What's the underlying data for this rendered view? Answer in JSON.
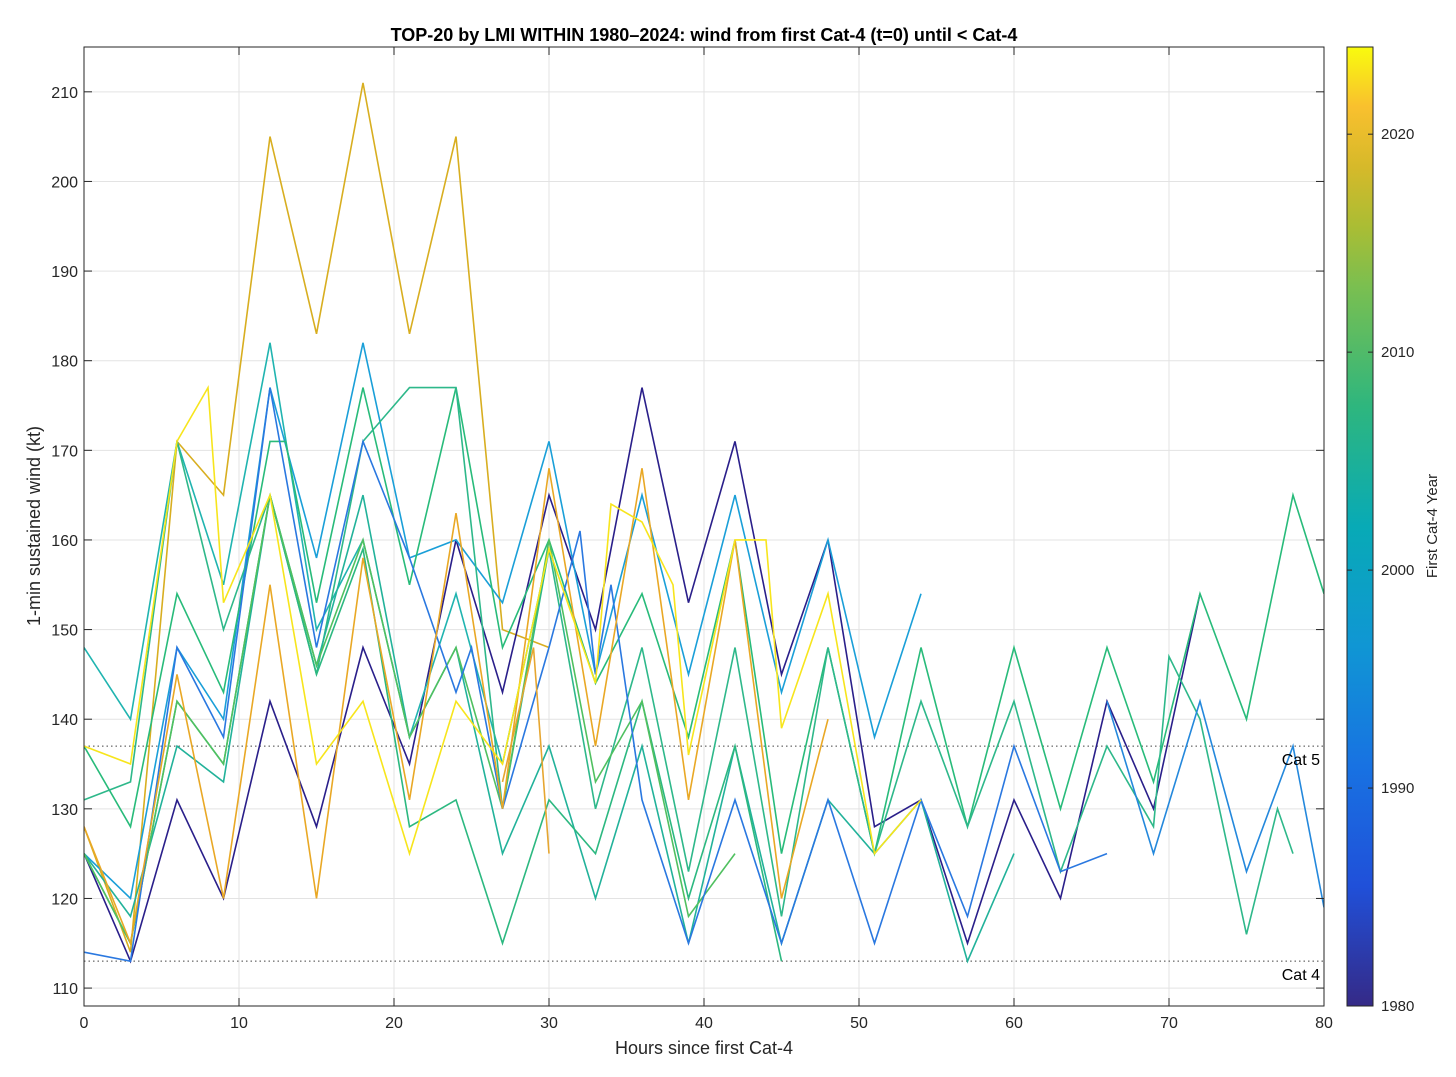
{
  "chart_data": {
    "type": "line",
    "title": "TOP-20 by LMI WITHIN 1980–2024: wind from first Cat-4 (t=0) until < Cat-4",
    "xlabel": "Hours since first Cat-4",
    "ylabel": "1-min sustained wind (kt)",
    "xlim": [
      0,
      80
    ],
    "ylim": [
      108,
      215
    ],
    "xticks": [
      "0",
      "10",
      "20",
      "30",
      "40",
      "50",
      "60",
      "70",
      "80"
    ],
    "yticks": [
      "110",
      "120",
      "130",
      "140",
      "150",
      "160",
      "170",
      "180",
      "190",
      "200",
      "210"
    ],
    "grid": true,
    "colorbar": {
      "label": "First Cat-4 Year",
      "range": [
        1980,
        2024
      ],
      "ticks": [
        "1980",
        "1990",
        "2000",
        "2010",
        "2020"
      ],
      "colormap": "parula"
    },
    "reference_lines": [
      {
        "label": "Cat 5",
        "y": 137
      },
      {
        "label": "Cat 4",
        "y": 113
      }
    ],
    "series": [
      {
        "year": 2019,
        "color": "#d8ae20",
        "x": [
          0,
          3,
          6,
          9,
          12,
          15,
          18,
          21,
          24,
          27,
          30
        ],
        "y": [
          128,
          114,
          171,
          165,
          205,
          183,
          211,
          183,
          205,
          150,
          148
        ]
      },
      {
        "year": 1980,
        "color": "#2a1f8a",
        "x": [
          0,
          3,
          6,
          9,
          12,
          15,
          18,
          21,
          24,
          27,
          30,
          33,
          36,
          39,
          42,
          45,
          48,
          51,
          54,
          57,
          60,
          63,
          66,
          69,
          72
        ],
        "y": [
          125,
          113,
          131,
          120,
          142,
          128,
          148,
          135,
          160,
          143,
          165,
          150,
          177,
          153,
          171,
          145,
          160,
          128,
          131,
          115,
          131,
          120,
          142,
          130,
          154
        ]
      },
      {
        "year": 1998,
        "color": "#1a9fd8",
        "x": [
          0,
          3,
          6,
          9,
          12,
          15,
          18,
          21,
          24,
          27,
          30,
          33,
          36,
          39,
          42,
          45,
          48,
          51,
          54
        ],
        "y": [
          125,
          120,
          148,
          140,
          177,
          158,
          182,
          158,
          160,
          153,
          171,
          145,
          165,
          145,
          165,
          143,
          160,
          138,
          154
        ]
      },
      {
        "year": 2002,
        "color": "#20b4b0",
        "x": [
          0,
          3,
          6,
          9,
          12,
          15,
          18,
          21,
          24,
          27,
          30
        ],
        "y": [
          148,
          140,
          171,
          155,
          182,
          150,
          160,
          138,
          154,
          135,
          159
        ]
      },
      {
        "year": 2006,
        "color": "#28bb7a",
        "x": [
          0,
          3,
          6,
          9,
          12,
          13,
          15,
          18,
          21,
          24,
          27,
          30,
          33,
          36,
          39,
          42,
          45,
          48,
          51,
          54,
          57,
          60,
          63,
          66,
          69,
          72,
          75,
          78,
          80
        ],
        "y": [
          137,
          128,
          154,
          143,
          171,
          171,
          153,
          177,
          155,
          177,
          148,
          160,
          144,
          154,
          138,
          160,
          125,
          148,
          125,
          148,
          128,
          148,
          130,
          148,
          133,
          154,
          140,
          165,
          154
        ]
      },
      {
        "year": 2004,
        "color": "#2eb88a",
        "x": [
          0,
          3,
          6,
          9,
          12,
          15,
          18,
          21,
          22,
          24,
          27,
          30,
          33,
          36,
          39,
          42,
          45,
          48,
          51,
          54,
          57,
          60,
          63,
          66,
          69,
          70,
          72,
          75,
          77,
          78
        ],
        "y": [
          131,
          133,
          171,
          150,
          165,
          145,
          171,
          177,
          177,
          177,
          130,
          159,
          130,
          148,
          123,
          148,
          118,
          148,
          125,
          142,
          128,
          142,
          123,
          137,
          128,
          147,
          140,
          116,
          130,
          125
        ]
      },
      {
        "year": 2003,
        "color": "#22b29a",
        "x": [
          0,
          3,
          6,
          9,
          12,
          15,
          18,
          21,
          24,
          27,
          30,
          33,
          36,
          39,
          42,
          45,
          48,
          51,
          54,
          57,
          60
        ],
        "y": [
          125,
          118,
          137,
          133,
          165,
          146,
          165,
          138,
          148,
          125,
          137,
          120,
          137,
          115,
          137,
          115,
          131,
          125,
          131,
          113,
          125
        ]
      },
      {
        "year": 2005,
        "color": "#2cb880",
        "x": [
          0,
          3,
          6,
          9,
          12,
          15,
          18,
          21,
          24,
          27,
          30,
          33,
          36,
          39,
          42,
          45
        ],
        "y": [
          125,
          115,
          142,
          135,
          165,
          145,
          159,
          128,
          131,
          115,
          131,
          125,
          142,
          120,
          137,
          113
        ]
      },
      {
        "year": 2009,
        "color": "#50c060",
        "x": [
          0,
          3,
          6,
          9,
          12,
          15,
          18,
          21,
          24,
          27,
          30,
          33,
          36,
          39,
          42
        ],
        "y": [
          125,
          115,
          142,
          135,
          165,
          146,
          160,
          138,
          148,
          130,
          160,
          133,
          142,
          118,
          125
        ]
      },
      {
        "year": 1994,
        "color": "#2a78e0",
        "x": [
          0,
          3,
          6,
          9,
          12,
          15,
          18,
          21,
          24,
          25,
          27,
          30,
          32,
          33,
          34,
          36,
          39,
          42,
          45,
          48,
          51,
          54,
          57,
          60,
          63,
          66
        ],
        "y": [
          114,
          113,
          148,
          138,
          177,
          148,
          171,
          158,
          143,
          148,
          130,
          148,
          161,
          145,
          155,
          131,
          115,
          131,
          115,
          131,
          115,
          131,
          118,
          137,
          123,
          125
        ]
      },
      {
        "year": 1996,
        "color": "#2488dc",
        "x": [
          66,
          69,
          72,
          75,
          78,
          80
        ],
        "y": [
          142,
          125,
          142,
          123,
          137,
          119
        ]
      },
      {
        "year": 2018,
        "color": "#e9a825",
        "x": [
          0,
          3,
          6,
          9,
          12,
          15,
          18,
          21,
          24,
          27,
          30,
          33,
          36,
          39,
          42,
          45,
          48
        ],
        "y": [
          128,
          115,
          145,
          120,
          155,
          120,
          158,
          131,
          163,
          130,
          168,
          137,
          168,
          131,
          160,
          120,
          140
        ]
      },
      {
        "year": 2017,
        "color": "#e6a630",
        "x": [
          27,
          29,
          30
        ],
        "y": [
          133,
          148,
          125
        ]
      },
      {
        "year": 2023,
        "color": "#f7e51c",
        "x": [
          0,
          3,
          6,
          8,
          9,
          12,
          15,
          18,
          21,
          24,
          27,
          30,
          33,
          34,
          36,
          38,
          39,
          42,
          44,
          45,
          48,
          51,
          54
        ],
        "y": [
          137,
          135,
          171,
          177,
          153,
          165,
          135,
          142,
          125,
          142,
          135,
          159,
          144,
          164,
          162,
          155,
          136,
          160,
          160,
          139,
          154,
          125,
          131
        ]
      }
    ]
  }
}
